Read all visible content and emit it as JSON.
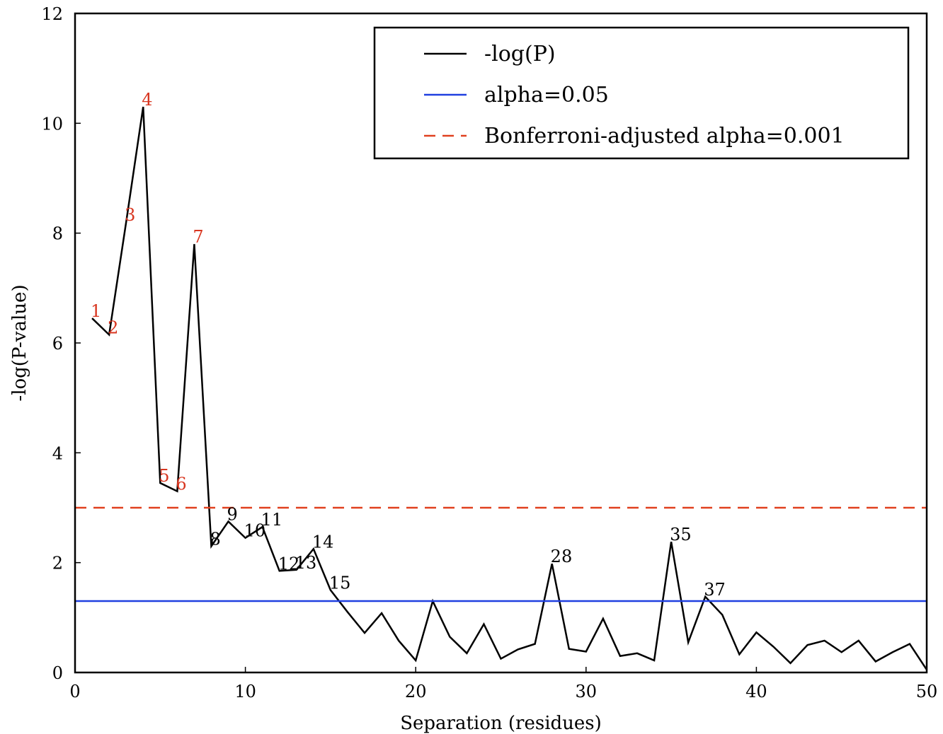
{
  "chart_data": {
    "type": "line",
    "title": "",
    "xlabel": "Separation (residues)",
    "ylabel": "-log(P-value)",
    "xlim": [
      0,
      50
    ],
    "ylim": [
      0,
      12
    ],
    "xticks": [
      0,
      10,
      20,
      30,
      40,
      50
    ],
    "yticks": [
      0,
      2,
      4,
      6,
      8,
      10,
      12
    ],
    "grid": false,
    "legend_placement": "top-right",
    "series": [
      {
        "name": "-log(P)",
        "kind": "line",
        "color": "#000000",
        "style": "solid",
        "x": [
          1,
          2,
          3,
          4,
          5,
          6,
          7,
          8,
          9,
          10,
          11,
          12,
          13,
          14,
          15,
          16,
          17,
          18,
          19,
          20,
          21,
          22,
          23,
          24,
          25,
          26,
          27,
          28,
          29,
          30,
          31,
          32,
          33,
          34,
          35,
          36,
          37,
          38,
          39,
          40,
          41,
          42,
          43,
          44,
          45,
          46,
          47,
          48,
          49,
          50
        ],
        "y": [
          6.45,
          6.15,
          8.2,
          10.3,
          3.45,
          3.3,
          7.8,
          2.3,
          2.75,
          2.45,
          2.65,
          1.85,
          1.87,
          2.25,
          1.5,
          1.1,
          0.72,
          1.08,
          0.58,
          0.22,
          1.3,
          0.65,
          0.35,
          0.88,
          0.25,
          0.42,
          0.52,
          1.98,
          0.43,
          0.38,
          0.98,
          0.3,
          0.35,
          0.22,
          2.38,
          0.55,
          1.38,
          1.05,
          0.33,
          0.73,
          0.47,
          0.17,
          0.5,
          0.58,
          0.37,
          0.58,
          0.2,
          0.37,
          0.52,
          0.05
        ]
      },
      {
        "name": "alpha=0.05",
        "kind": "hline",
        "color": "#1f3fe0",
        "style": "solid",
        "y": 1.3
      },
      {
        "name": "Bonferroni-adjusted alpha=0.001",
        "kind": "hline",
        "color": "#e0401f",
        "style": "dashed",
        "y": 3.0
      }
    ],
    "annotations": [
      {
        "text": "1",
        "x": 1,
        "y": 6.45,
        "color": "#d8351f"
      },
      {
        "text": "2",
        "x": 2,
        "y": 6.15,
        "color": "#d8351f"
      },
      {
        "text": "3",
        "x": 3,
        "y": 8.2,
        "color": "#d8351f"
      },
      {
        "text": "4",
        "x": 4,
        "y": 10.3,
        "color": "#d8351f"
      },
      {
        "text": "5",
        "x": 5,
        "y": 3.45,
        "color": "#d8351f"
      },
      {
        "text": "6",
        "x": 6,
        "y": 3.3,
        "color": "#d8351f"
      },
      {
        "text": "7",
        "x": 7,
        "y": 7.8,
        "color": "#d8351f"
      },
      {
        "text": "8",
        "x": 8,
        "y": 2.3,
        "color": "#000000"
      },
      {
        "text": "9",
        "x": 9,
        "y": 2.75,
        "color": "#000000"
      },
      {
        "text": "10",
        "x": 10,
        "y": 2.45,
        "color": "#000000"
      },
      {
        "text": "11",
        "x": 11,
        "y": 2.65,
        "color": "#000000"
      },
      {
        "text": "12",
        "x": 12,
        "y": 1.85,
        "color": "#000000"
      },
      {
        "text": "13",
        "x": 13,
        "y": 1.87,
        "color": "#000000"
      },
      {
        "text": "14",
        "x": 14,
        "y": 2.25,
        "color": "#000000"
      },
      {
        "text": "15",
        "x": 15,
        "y": 1.5,
        "color": "#000000"
      },
      {
        "text": "28",
        "x": 28,
        "y": 1.98,
        "color": "#000000"
      },
      {
        "text": "35",
        "x": 35,
        "y": 2.38,
        "color": "#000000"
      },
      {
        "text": "37",
        "x": 37,
        "y": 1.38,
        "color": "#000000"
      }
    ],
    "legend": [
      "-log(P)",
      "alpha=0.05",
      "Bonferroni-adjusted alpha=0.001"
    ]
  }
}
